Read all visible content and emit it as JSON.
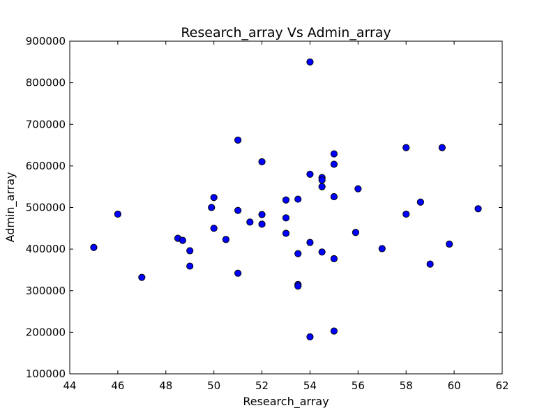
{
  "chart_data": {
    "type": "scatter",
    "title": "Research_array Vs Admin_array",
    "xlabel": "Research_array",
    "ylabel": "Admin_array",
    "xlim": [
      44,
      62
    ],
    "ylim": [
      100000,
      900000
    ],
    "xticks": [
      44,
      46,
      48,
      50,
      52,
      54,
      56,
      58,
      60,
      62
    ],
    "yticks": [
      100000,
      200000,
      300000,
      400000,
      500000,
      600000,
      700000,
      800000,
      900000
    ],
    "grid": false,
    "marker_color": "#0000ff",
    "series": [
      {
        "name": "Research_array vs Admin_array",
        "points": [
          [
            45,
            404000
          ],
          [
            46,
            484000
          ],
          [
            47,
            332000
          ],
          [
            48.5,
            426000
          ],
          [
            48.7,
            421000
          ],
          [
            49,
            396000
          ],
          [
            49,
            359000
          ],
          [
            49.9,
            500000
          ],
          [
            50,
            524000
          ],
          [
            50,
            450000
          ],
          [
            50.5,
            423000
          ],
          [
            51,
            662000
          ],
          [
            51,
            493000
          ],
          [
            51,
            342000
          ],
          [
            51.5,
            465000
          ],
          [
            52,
            610000
          ],
          [
            52,
            483000
          ],
          [
            52,
            460000
          ],
          [
            53,
            518000
          ],
          [
            53,
            475000
          ],
          [
            53,
            438000
          ],
          [
            53.5,
            520000
          ],
          [
            53.5,
            389000
          ],
          [
            53.5,
            315000
          ],
          [
            53.5,
            311000
          ],
          [
            54,
            850000
          ],
          [
            54,
            580000
          ],
          [
            54,
            416000
          ],
          [
            54,
            189000
          ],
          [
            54.5,
            572000
          ],
          [
            54.5,
            566000
          ],
          [
            54.5,
            550000
          ],
          [
            54.5,
            393000
          ],
          [
            55,
            629000
          ],
          [
            55,
            604000
          ],
          [
            55,
            526000
          ],
          [
            55,
            377000
          ],
          [
            55,
            203000
          ],
          [
            55.9,
            440000
          ],
          [
            56,
            545000
          ],
          [
            57,
            401000
          ],
          [
            58,
            644000
          ],
          [
            58,
            484000
          ],
          [
            58.6,
            513000
          ],
          [
            59,
            364000
          ],
          [
            59.5,
            644000
          ],
          [
            59.8,
            412000
          ],
          [
            61,
            497000
          ]
        ]
      }
    ]
  }
}
